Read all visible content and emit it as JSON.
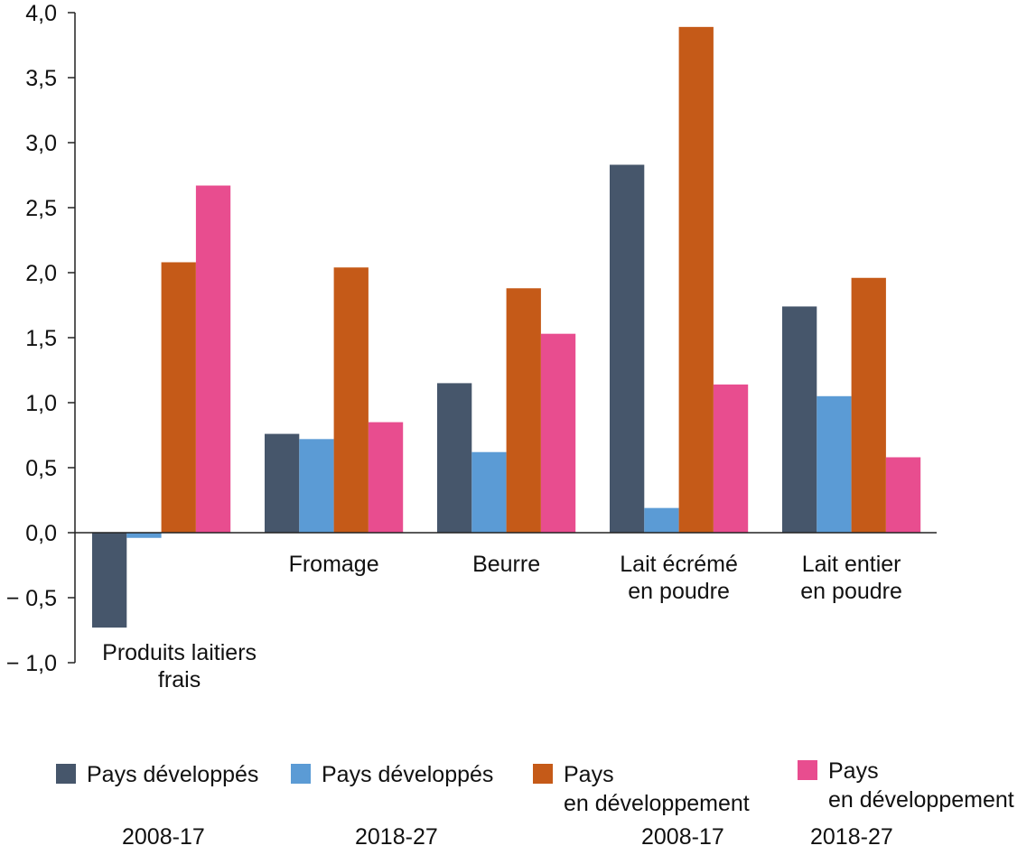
{
  "chart_data": {
    "type": "bar",
    "title": "",
    "xlabel": "",
    "ylabel": "",
    "ylim": [
      -1.0,
      4.0
    ],
    "yticks": [
      -1.0,
      -0.5,
      0.0,
      0.5,
      1.0,
      1.5,
      2.0,
      2.5,
      3.0,
      3.5,
      4.0
    ],
    "ytick_labels": [
      "− 1,0",
      "− 0,5",
      "0,0",
      "0,5",
      "1,0",
      "1,5",
      "2,0",
      "2,5",
      "3,0",
      "3,5",
      "4,0"
    ],
    "grid": false,
    "legend_position": "bottom",
    "categories": [
      [
        "Produits laitiers",
        "frais"
      ],
      [
        "Fromage"
      ],
      [
        "Beurre"
      ],
      [
        "Lait écrémé",
        "en poudre"
      ],
      [
        "Lait entier",
        "en poudre"
      ]
    ],
    "series": [
      {
        "name": "Pays développés 2008-17",
        "label_lines": [
          "Pays développés"
        ],
        "period": "2008-17",
        "color": "#46566b",
        "values": [
          -0.73,
          0.76,
          1.15,
          2.83,
          1.74
        ]
      },
      {
        "name": "Pays développés 2018-27",
        "label_lines": [
          "Pays développés"
        ],
        "period": "2018-27",
        "color": "#5b9bd5",
        "values": [
          -0.04,
          0.72,
          0.62,
          0.19,
          1.05
        ]
      },
      {
        "name": "Pays en développement 2008-17",
        "label_lines": [
          "Pays",
          "en développement"
        ],
        "period": "2008-17",
        "color": "#c55a18",
        "values": [
          2.08,
          2.04,
          1.88,
          3.89,
          1.96
        ]
      },
      {
        "name": "Pays en développement 2018-27",
        "label_lines": [
          "Pays",
          "en développement"
        ],
        "period": "2018-27",
        "color": "#e84d8f",
        "values": [
          2.67,
          0.85,
          1.53,
          1.14,
          0.58
        ]
      }
    ]
  }
}
